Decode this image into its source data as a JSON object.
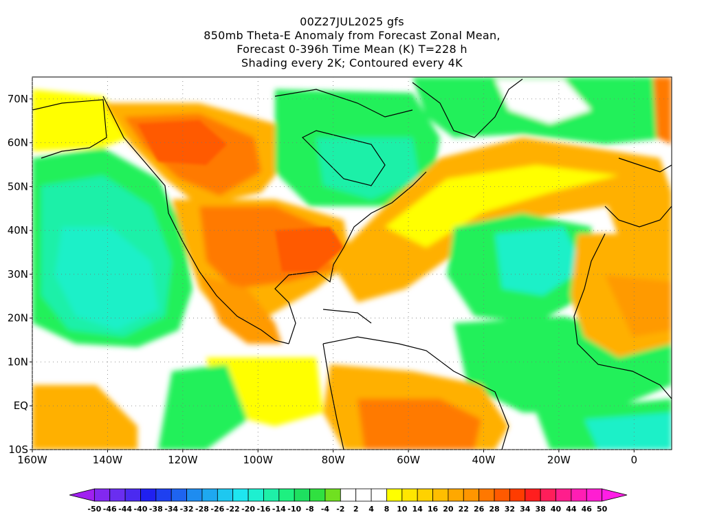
{
  "title": {
    "line1": "00Z27JUL2025 gfs",
    "line2": "850mb Theta-E Anomaly from Forecast Zonal Mean,",
    "line3": "Forecast 0-396h Time Mean (K) T=228 h",
    "line4": "Shading every 2K; Contoured every 4K"
  },
  "map": {
    "lat_labels": [
      "70N",
      "60N",
      "50N",
      "40N",
      "30N",
      "20N",
      "10N",
      "EQ",
      "10S"
    ],
    "lat_values": [
      70,
      60,
      50,
      40,
      30,
      20,
      10,
      0,
      -10
    ],
    "lon_labels": [
      "160W",
      "140W",
      "120W",
      "100W",
      "80W",
      "60W",
      "40W",
      "20W",
      "0"
    ],
    "lon_values": [
      -160,
      -140,
      -120,
      -100,
      -80,
      -60,
      -40,
      -20,
      0
    ],
    "lon_range": [
      -160,
      10
    ],
    "lat_range": [
      -10,
      75
    ]
  },
  "colorbar": {
    "labels": [
      "-50",
      "-46",
      "-44",
      "-40",
      "-38",
      "-34",
      "-32",
      "-28",
      "-26",
      "-22",
      "-20",
      "-16",
      "-14",
      "-10",
      "-8",
      "-4",
      "-2",
      "2",
      "4",
      "8",
      "10",
      "14",
      "16",
      "20",
      "22",
      "26",
      "28",
      "32",
      "34",
      "38",
      "40",
      "44",
      "46",
      "50"
    ],
    "colors": [
      "#a020f0",
      "#8228f0",
      "#6a2ef0",
      "#4b2af0",
      "#2020f0",
      "#1e40f0",
      "#1e64f0",
      "#1e8cf0",
      "#1ea8f0",
      "#1ec8f0",
      "#1ee6f0",
      "#1ef0d0",
      "#1ef0a8",
      "#1ef080",
      "#1ee060",
      "#30e040",
      "#70e020",
      "#ffffff",
      "#ffffff",
      "#ffffff",
      "#ffff00",
      "#ffe600",
      "#ffd200",
      "#ffbe00",
      "#ffa800",
      "#ff9600",
      "#ff7800",
      "#ff5a00",
      "#ff3c00",
      "#ff1e1e",
      "#ff1e5a",
      "#ff1e8c",
      "#ff1eb4",
      "#ff1ed2",
      "#ff1ee6"
    ]
  },
  "colors": {
    "warm_strong": "#ff7a00",
    "warm_mid": "#ffb000",
    "warm_light": "#ffff00",
    "neutral": "#ffffff",
    "cool_light": "#22f05a",
    "cool_mid": "#1ef0c8",
    "coast": "#000000"
  }
}
